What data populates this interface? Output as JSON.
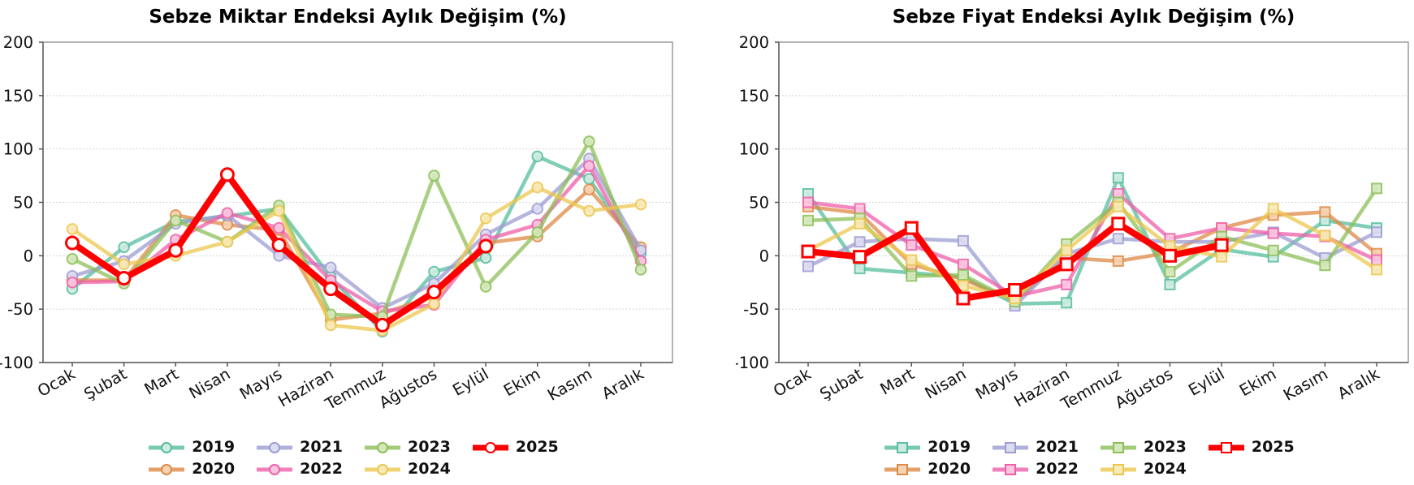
{
  "months": [
    "Ocak",
    "Şubat",
    "Mart",
    "Nisan",
    "Mayıs",
    "Haziran",
    "Temmuz",
    "Ağustos",
    "Eylül",
    "Ekim",
    "Kasım",
    "Aralık"
  ],
  "palette": {
    "2019": {
      "line": "#55bd9d",
      "fill": "#cdebe1"
    },
    "2020": {
      "line": "#df8a45",
      "fill": "#f5d3b3"
    },
    "2021": {
      "line": "#9e9cd3",
      "fill": "#dddcf0"
    },
    "2022": {
      "line": "#ee5fa8",
      "fill": "#f9c6e0"
    },
    "2023": {
      "line": "#8cbf58",
      "fill": "#d5e8bd"
    },
    "2024": {
      "line": "#ecc74d",
      "fill": "#f7e9b8"
    },
    "2025": {
      "line": "#fe0000",
      "fill": "#ffffff"
    }
  },
  "chart_data": [
    {
      "type": "line",
      "title": "Sebze Miktar Endeksi Aylık Değişim (%)",
      "marker": "circle",
      "xlabel": "",
      "ylabel": "",
      "ylim": [
        -100,
        200
      ],
      "y_ticks": [
        200,
        150,
        100,
        50,
        0,
        -50,
        -100
      ],
      "grid": true,
      "legend_position": "bottom",
      "categories": [
        "Ocak",
        "Şubat",
        "Mart",
        "Nisan",
        "Mayıs",
        "Haziran",
        "Temmuz",
        "Ağustos",
        "Eylül",
        "Ekim",
        "Kasım",
        "Aralık"
      ],
      "series": [
        {
          "name": "2019",
          "values": [
            -31,
            8,
            32,
            37,
            44,
            -20,
            -71,
            -15,
            -2,
            93,
            72,
            2
          ]
        },
        {
          "name": "2020",
          "values": [
            -23,
            -23,
            38,
            29,
            24,
            -60,
            -54,
            -38,
            12,
            18,
            62,
            8
          ]
        },
        {
          "name": "2021",
          "values": [
            -19,
            -5,
            30,
            38,
            0,
            -11,
            -49,
            -26,
            20,
            44,
            91,
            5
          ]
        },
        {
          "name": "2022",
          "values": [
            -25,
            -24,
            15,
            40,
            26,
            -23,
            -52,
            -46,
            15,
            29,
            84,
            -5
          ]
        },
        {
          "name": "2023",
          "values": [
            -3,
            -26,
            33,
            13,
            47,
            -55,
            -57,
            75,
            -29,
            22,
            107,
            -13
          ]
        },
        {
          "name": "2024",
          "values": [
            25,
            -8,
            0,
            13,
            42,
            -65,
            -70,
            -45,
            35,
            64,
            42,
            48
          ]
        },
        {
          "name": "2025",
          "values": [
            12,
            -21,
            5,
            76,
            10,
            -31,
            -65,
            -34,
            9
          ],
          "emphasis": true
        }
      ]
    },
    {
      "type": "line",
      "title": "Sebze Fiyat Endeksi Aylık Değişim (%)",
      "marker": "square",
      "xlabel": "",
      "ylabel": "",
      "ylim": [
        -100,
        200
      ],
      "y_ticks": [
        200,
        150,
        100,
        50,
        0,
        -50,
        -100
      ],
      "grid": true,
      "legend_position": "bottom",
      "categories": [
        "Ocak",
        "Şubat",
        "Mart",
        "Nisan",
        "Mayıs",
        "Haziran",
        "Temmuz",
        "Ağustos",
        "Eylül",
        "Ekim",
        "Kasım",
        "Aralık"
      ],
      "series": [
        {
          "name": "2019",
          "values": [
            58,
            -12,
            -16,
            -20,
            -45,
            -44,
            73,
            -27,
            6,
            -1,
            33,
            26
          ]
        },
        {
          "name": "2020",
          "values": [
            46,
            40,
            -8,
            -22,
            -42,
            -2,
            -5,
            3,
            26,
            38,
            41,
            2
          ]
        },
        {
          "name": "2021",
          "values": [
            -10,
            13,
            16,
            14,
            -47,
            2,
            16,
            13,
            13,
            22,
            -2,
            22
          ]
        },
        {
          "name": "2022",
          "values": [
            50,
            44,
            10,
            -8,
            -38,
            -27,
            58,
            16,
            26,
            21,
            18,
            -4
          ]
        },
        {
          "name": "2023",
          "values": [
            33,
            35,
            -19,
            -18,
            -43,
            11,
            50,
            -15,
            18,
            5,
            -9,
            63
          ]
        },
        {
          "name": "2024",
          "values": [
            5,
            30,
            -4,
            -28,
            -40,
            5,
            46,
            9,
            -1,
            44,
            19,
            -13
          ]
        },
        {
          "name": "2025",
          "values": [
            4,
            -1,
            26,
            -40,
            -32,
            -8,
            30,
            0,
            10
          ],
          "emphasis": true
        }
      ]
    }
  ],
  "style": {
    "grid_color": "#c8c8c8",
    "box_color": "#a0a0a0",
    "spine_color": "#707070",
    "tick_color": "#555555",
    "text_color": "#111111"
  }
}
